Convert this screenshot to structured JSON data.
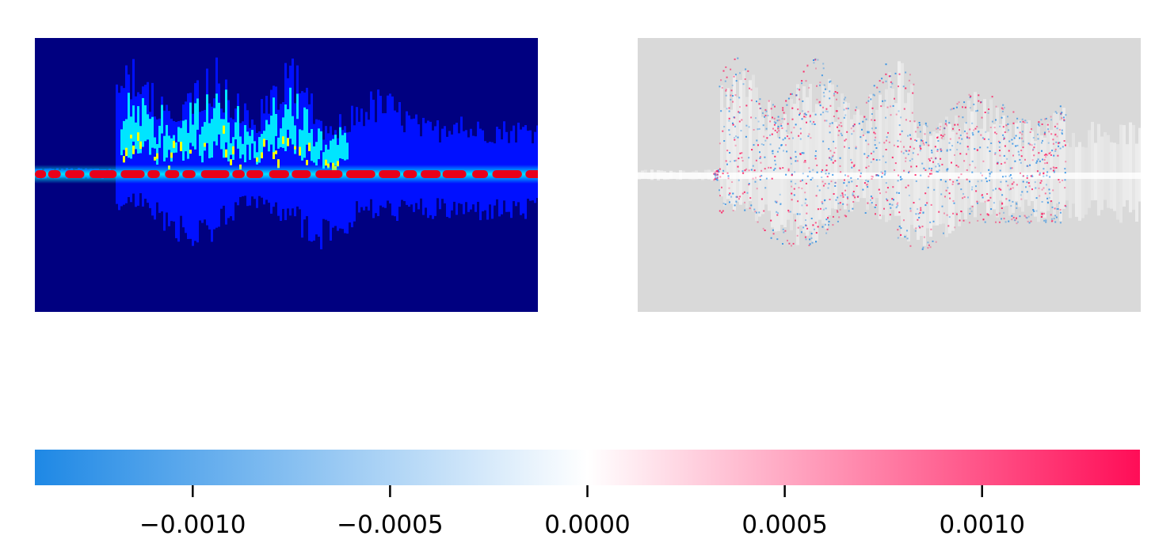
{
  "chart_data": [
    {
      "type": "heatmap",
      "panel": "spectrogram",
      "colormap": "jet",
      "axes_visible": false,
      "title": "",
      "xlabel": "",
      "ylabel": ""
    },
    {
      "type": "heatmap",
      "panel": "attribution",
      "colormap": "diverging blue-white-red",
      "background_color": "#d9d9d9",
      "axes_visible": false,
      "title": "",
      "xlabel": "",
      "ylabel": ""
    },
    {
      "type": "colorbar",
      "orientation": "horizontal",
      "range": [
        -0.0014,
        0.0014
      ],
      "ticks": [
        -0.001,
        -0.0005,
        0.0,
        0.0005,
        0.001
      ],
      "tick_labels": [
        "−0.0010",
        "−0.0005",
        "0.0000",
        "0.0005",
        "0.0010"
      ],
      "colors": {
        "negative": "#1e88e5",
        "zero": "#ffffff",
        "positive": "#ff0d57"
      }
    }
  ]
}
